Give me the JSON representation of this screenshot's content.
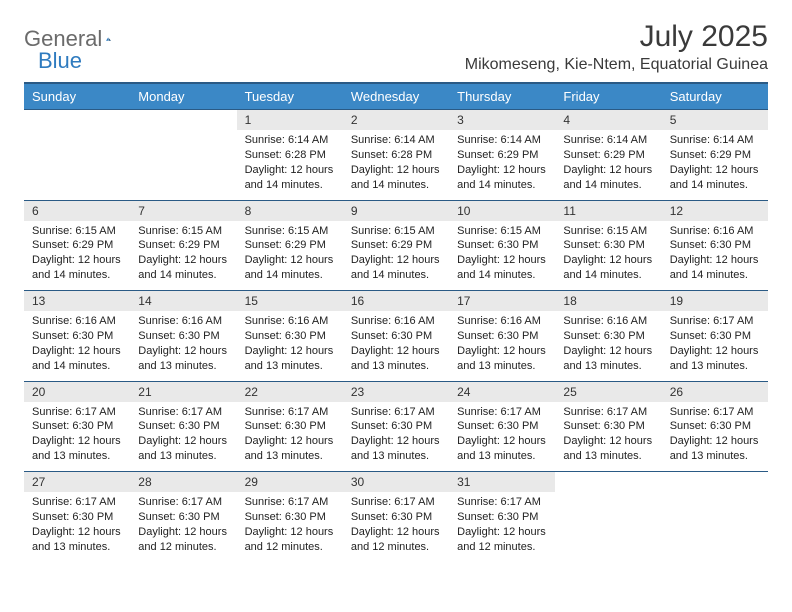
{
  "logo": {
    "text1": "General",
    "text2": "Blue"
  },
  "title": "July 2025",
  "location": "Mikomeseng, Kie-Ntem, Equatorial Guinea",
  "colors": {
    "header_bg": "#3b88c6",
    "header_text": "#ffffff",
    "border": "#2a5a85",
    "daynum_bg": "#e9e9e9",
    "logo_gray": "#6b6b6b",
    "logo_blue": "#2f7bbf"
  },
  "weekdays": [
    "Sunday",
    "Monday",
    "Tuesday",
    "Wednesday",
    "Thursday",
    "Friday",
    "Saturday"
  ],
  "weeks": [
    [
      null,
      null,
      {
        "d": "1",
        "sunrise": "6:14 AM",
        "sunset": "6:28 PM",
        "daylight": "12 hours and 14 minutes."
      },
      {
        "d": "2",
        "sunrise": "6:14 AM",
        "sunset": "6:28 PM",
        "daylight": "12 hours and 14 minutes."
      },
      {
        "d": "3",
        "sunrise": "6:14 AM",
        "sunset": "6:29 PM",
        "daylight": "12 hours and 14 minutes."
      },
      {
        "d": "4",
        "sunrise": "6:14 AM",
        "sunset": "6:29 PM",
        "daylight": "12 hours and 14 minutes."
      },
      {
        "d": "5",
        "sunrise": "6:14 AM",
        "sunset": "6:29 PM",
        "daylight": "12 hours and 14 minutes."
      }
    ],
    [
      {
        "d": "6",
        "sunrise": "6:15 AM",
        "sunset": "6:29 PM",
        "daylight": "12 hours and 14 minutes."
      },
      {
        "d": "7",
        "sunrise": "6:15 AM",
        "sunset": "6:29 PM",
        "daylight": "12 hours and 14 minutes."
      },
      {
        "d": "8",
        "sunrise": "6:15 AM",
        "sunset": "6:29 PM",
        "daylight": "12 hours and 14 minutes."
      },
      {
        "d": "9",
        "sunrise": "6:15 AM",
        "sunset": "6:29 PM",
        "daylight": "12 hours and 14 minutes."
      },
      {
        "d": "10",
        "sunrise": "6:15 AM",
        "sunset": "6:30 PM",
        "daylight": "12 hours and 14 minutes."
      },
      {
        "d": "11",
        "sunrise": "6:15 AM",
        "sunset": "6:30 PM",
        "daylight": "12 hours and 14 minutes."
      },
      {
        "d": "12",
        "sunrise": "6:16 AM",
        "sunset": "6:30 PM",
        "daylight": "12 hours and 14 minutes."
      }
    ],
    [
      {
        "d": "13",
        "sunrise": "6:16 AM",
        "sunset": "6:30 PM",
        "daylight": "12 hours and 14 minutes."
      },
      {
        "d": "14",
        "sunrise": "6:16 AM",
        "sunset": "6:30 PM",
        "daylight": "12 hours and 13 minutes."
      },
      {
        "d": "15",
        "sunrise": "6:16 AM",
        "sunset": "6:30 PM",
        "daylight": "12 hours and 13 minutes."
      },
      {
        "d": "16",
        "sunrise": "6:16 AM",
        "sunset": "6:30 PM",
        "daylight": "12 hours and 13 minutes."
      },
      {
        "d": "17",
        "sunrise": "6:16 AM",
        "sunset": "6:30 PM",
        "daylight": "12 hours and 13 minutes."
      },
      {
        "d": "18",
        "sunrise": "6:16 AM",
        "sunset": "6:30 PM",
        "daylight": "12 hours and 13 minutes."
      },
      {
        "d": "19",
        "sunrise": "6:17 AM",
        "sunset": "6:30 PM",
        "daylight": "12 hours and 13 minutes."
      }
    ],
    [
      {
        "d": "20",
        "sunrise": "6:17 AM",
        "sunset": "6:30 PM",
        "daylight": "12 hours and 13 minutes."
      },
      {
        "d": "21",
        "sunrise": "6:17 AM",
        "sunset": "6:30 PM",
        "daylight": "12 hours and 13 minutes."
      },
      {
        "d": "22",
        "sunrise": "6:17 AM",
        "sunset": "6:30 PM",
        "daylight": "12 hours and 13 minutes."
      },
      {
        "d": "23",
        "sunrise": "6:17 AM",
        "sunset": "6:30 PM",
        "daylight": "12 hours and 13 minutes."
      },
      {
        "d": "24",
        "sunrise": "6:17 AM",
        "sunset": "6:30 PM",
        "daylight": "12 hours and 13 minutes."
      },
      {
        "d": "25",
        "sunrise": "6:17 AM",
        "sunset": "6:30 PM",
        "daylight": "12 hours and 13 minutes."
      },
      {
        "d": "26",
        "sunrise": "6:17 AM",
        "sunset": "6:30 PM",
        "daylight": "12 hours and 13 minutes."
      }
    ],
    [
      {
        "d": "27",
        "sunrise": "6:17 AM",
        "sunset": "6:30 PM",
        "daylight": "12 hours and 13 minutes."
      },
      {
        "d": "28",
        "sunrise": "6:17 AM",
        "sunset": "6:30 PM",
        "daylight": "12 hours and 12 minutes."
      },
      {
        "d": "29",
        "sunrise": "6:17 AM",
        "sunset": "6:30 PM",
        "daylight": "12 hours and 12 minutes."
      },
      {
        "d": "30",
        "sunrise": "6:17 AM",
        "sunset": "6:30 PM",
        "daylight": "12 hours and 12 minutes."
      },
      {
        "d": "31",
        "sunrise": "6:17 AM",
        "sunset": "6:30 PM",
        "daylight": "12 hours and 12 minutes."
      },
      null,
      null
    ]
  ],
  "labels": {
    "sunrise": "Sunrise:",
    "sunset": "Sunset:",
    "daylight": "Daylight:"
  }
}
